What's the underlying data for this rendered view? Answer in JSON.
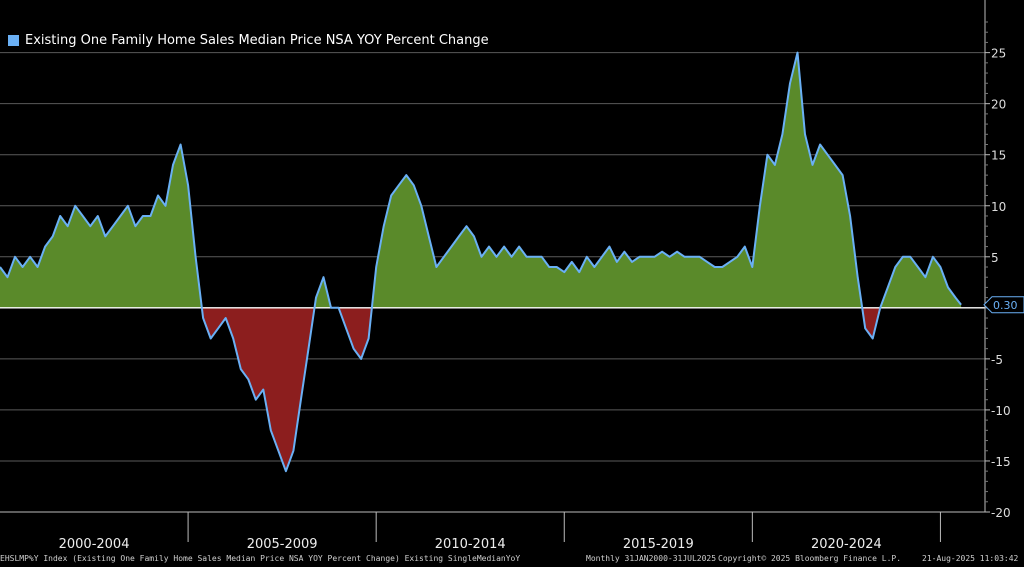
{
  "chart_data": {
    "type": "area",
    "title": "Existing One Family Home Sales Median Price NSA YOY Percent Change",
    "ylim": [
      -20,
      28
    ],
    "yticks": [
      -20,
      -15,
      -10,
      -5,
      0,
      5,
      10,
      15,
      20,
      25
    ],
    "ytick_labels": [
      "-20",
      "-15",
      "-10",
      "-5",
      "",
      "5",
      "10",
      "15",
      "20",
      "25"
    ],
    "xlim": [
      2000.0,
      2025.6
    ],
    "x_periods": [
      {
        "label": "2000-2004",
        "start": 2000,
        "end": 2005
      },
      {
        "label": "2005-2009",
        "start": 2005,
        "end": 2010
      },
      {
        "label": "2010-2014",
        "start": 2010,
        "end": 2015
      },
      {
        "label": "2015-2019",
        "start": 2015,
        "end": 2020
      },
      {
        "label": "2020-2024",
        "start": 2020,
        "end": 2025
      }
    ],
    "positive_color": "#5a8a2a",
    "negative_color": "#8c1e1e",
    "line_color": "#6ab0f5",
    "last_value": "0.30",
    "series": [
      {
        "name": "Existing One Family Home Sales Median Price NSA YOY Percent Change",
        "x": [
          2000.0,
          2000.2,
          2000.4,
          2000.6,
          2000.8,
          2001.0,
          2001.2,
          2001.4,
          2001.6,
          2001.8,
          2002.0,
          2002.2,
          2002.4,
          2002.6,
          2002.8,
          2003.0,
          2003.2,
          2003.4,
          2003.6,
          2003.8,
          2004.0,
          2004.2,
          2004.4,
          2004.6,
          2004.8,
          2005.0,
          2005.2,
          2005.4,
          2005.6,
          2005.8,
          2006.0,
          2006.2,
          2006.4,
          2006.6,
          2006.8,
          2007.0,
          2007.2,
          2007.4,
          2007.6,
          2007.8,
          2008.0,
          2008.2,
          2008.4,
          2008.6,
          2008.8,
          2009.0,
          2009.2,
          2009.4,
          2009.6,
          2009.8,
          2010.0,
          2010.2,
          2010.4,
          2010.6,
          2010.8,
          2011.0,
          2011.2,
          2011.4,
          2011.6,
          2011.8,
          2012.0,
          2012.2,
          2012.4,
          2012.6,
          2012.8,
          2013.0,
          2013.2,
          2013.4,
          2013.6,
          2013.8,
          2014.0,
          2014.2,
          2014.4,
          2014.6,
          2014.8,
          2015.0,
          2015.2,
          2015.4,
          2015.6,
          2015.8,
          2016.0,
          2016.2,
          2016.4,
          2016.6,
          2016.8,
          2017.0,
          2017.2,
          2017.4,
          2017.6,
          2017.8,
          2018.0,
          2018.2,
          2018.4,
          2018.6,
          2018.8,
          2019.0,
          2019.2,
          2019.4,
          2019.6,
          2019.8,
          2020.0,
          2020.2,
          2020.4,
          2020.6,
          2020.8,
          2021.0,
          2021.2,
          2021.4,
          2021.6,
          2021.8,
          2022.0,
          2022.2,
          2022.4,
          2022.6,
          2022.8,
          2023.0,
          2023.2,
          2023.4,
          2023.6,
          2023.8,
          2024.0,
          2024.2,
          2024.4,
          2024.6,
          2024.8,
          2025.0,
          2025.2,
          2025.4,
          2025.55
        ],
        "values": [
          4,
          3,
          5,
          4,
          5,
          4,
          6,
          7,
          9,
          8,
          10,
          9,
          8,
          9,
          7,
          8,
          9,
          10,
          8,
          9,
          9,
          11,
          10,
          14,
          16,
          12,
          5,
          -1,
          -3,
          -2,
          -1,
          -3,
          -6,
          -7,
          -9,
          -8,
          -12,
          -14,
          -16,
          -14,
          -9,
          -4,
          1,
          3,
          0,
          0,
          -2,
          -4,
          -5,
          -3,
          4,
          8,
          11,
          12,
          13,
          12,
          10,
          7,
          4,
          5,
          6,
          7,
          8,
          7,
          5,
          6,
          5,
          6,
          5,
          6,
          5,
          5,
          5,
          4,
          4,
          3.5,
          4.5,
          3.5,
          5,
          4,
          5,
          6,
          4.5,
          5.5,
          4.5,
          5,
          5,
          5,
          5.5,
          5,
          5.5,
          5,
          5,
          5,
          4.5,
          4,
          4,
          4.5,
          5,
          6,
          4,
          10,
          15,
          14,
          17,
          22,
          25,
          17,
          14,
          16,
          15,
          14,
          13,
          9,
          3,
          -2,
          -3,
          0,
          2,
          4,
          5,
          5,
          4,
          3,
          5,
          4,
          2,
          1,
          0.3
        ]
      }
    ]
  },
  "footer": {
    "ticker": "EHSLMP%Y Index (Existing One Family Home Sales Median Price NSA YOY Percent Change) Existing SingleMedianYoY",
    "range": "Monthly 31JAN2000-31JUL2025",
    "copyright": "Copyright© 2025 Bloomberg Finance L.P.",
    "timestamp": "21-Aug-2025 11:03:42"
  }
}
